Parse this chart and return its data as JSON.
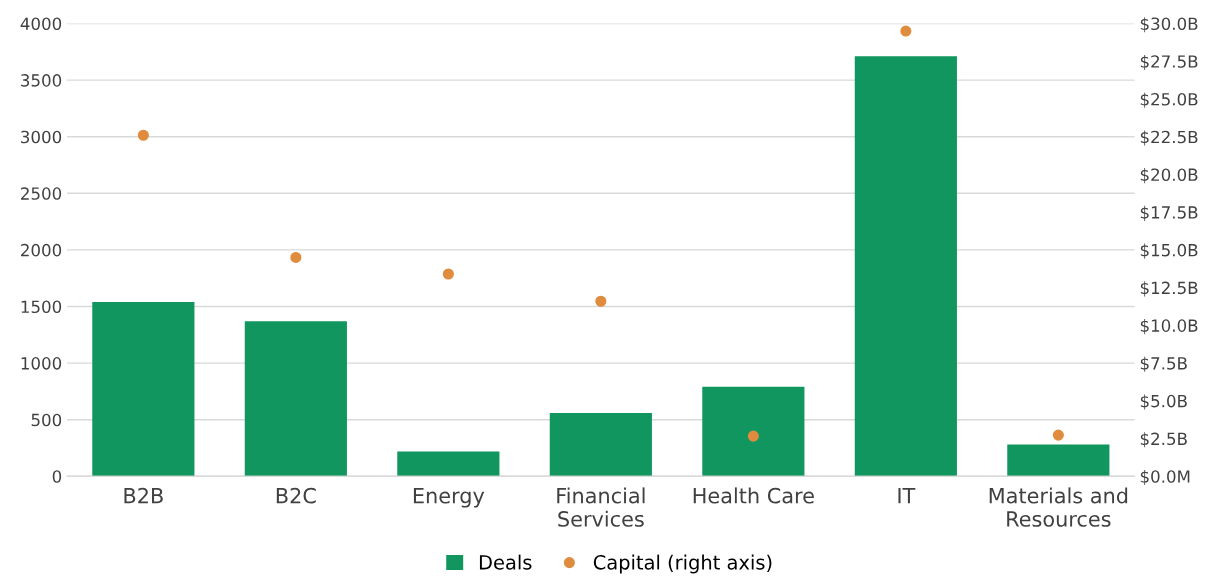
{
  "chart_data": {
    "type": "bar",
    "categories": [
      "B2B",
      "B2C",
      "Energy",
      "Financial Services",
      "Health Care",
      "IT",
      "Materials and Resources"
    ],
    "series": [
      {
        "name": "Deals",
        "color": "#10965e",
        "values": [
          1540,
          1370,
          220,
          560,
          790,
          3710,
          280
        ]
      },
      {
        "name": "Capital (right axis)",
        "type": "scatter",
        "axis": "y2",
        "color": "#e08c3e",
        "values": [
          22.6,
          14.5,
          13.4,
          11.6,
          2.66,
          29.5,
          2.73
        ]
      }
    ],
    "ylim": [
      0,
      4000
    ],
    "yticks": [
      0,
      500,
      1000,
      1500,
      2000,
      2500,
      3000,
      3500,
      4000
    ],
    "y2lim": [
      0,
      30
    ],
    "y2ticks": [
      {
        "value": 0,
        "label": "$0.0M"
      },
      {
        "value": 2.5,
        "label": "$2.5B"
      },
      {
        "value": 5,
        "label": "$5.0B"
      },
      {
        "value": 7.5,
        "label": "$7.5B"
      },
      {
        "value": 10,
        "label": "$10.0B"
      },
      {
        "value": 12.5,
        "label": "$12.5B"
      },
      {
        "value": 15,
        "label": "$15.0B"
      },
      {
        "value": 17.5,
        "label": "$17.5B"
      },
      {
        "value": 20,
        "label": "$20.0B"
      },
      {
        "value": 22.5,
        "label": "$22.5B"
      },
      {
        "value": 25,
        "label": "$25.0B"
      },
      {
        "value": 27.5,
        "label": "$27.5B"
      },
      {
        "value": 30,
        "label": "$30.0B"
      }
    ],
    "grid": "y",
    "legend": "bottom",
    "marker": "circle"
  }
}
